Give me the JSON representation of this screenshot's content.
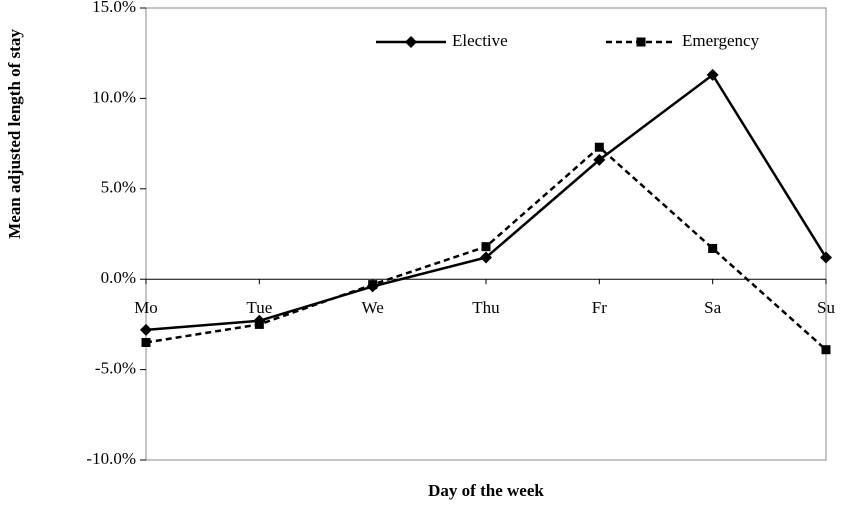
{
  "chart_data": {
    "type": "line",
    "xlabel": "Day of the week",
    "ylabel": "Mean adjusted length of stay",
    "categories": [
      "Mo",
      "Tue",
      "We",
      "Thu",
      "Fr",
      "Sa",
      "Su"
    ],
    "series": [
      {
        "name": "Elective",
        "color": "#000000",
        "marker": "diamond",
        "dash": "solid",
        "values": [
          -2.8,
          -2.3,
          -0.4,
          1.2,
          6.6,
          11.3,
          1.2
        ]
      },
      {
        "name": "Emergency",
        "color": "#000000",
        "marker": "square",
        "dash": "dashed",
        "values": [
          -3.5,
          -2.5,
          -0.3,
          1.8,
          7.3,
          1.7,
          -3.9
        ]
      }
    ],
    "ylim": [
      -10,
      15
    ],
    "yticks": [
      {
        "value": -10,
        "label": "-10.0%"
      },
      {
        "value": -5,
        "label": "-5.0%"
      },
      {
        "value": 0,
        "label": "0.0%"
      },
      {
        "value": 5,
        "label": "5.0%"
      },
      {
        "value": 10,
        "label": "10.0%"
      },
      {
        "value": 15,
        "label": "15.0%"
      }
    ],
    "grid": false,
    "legend": "top"
  }
}
